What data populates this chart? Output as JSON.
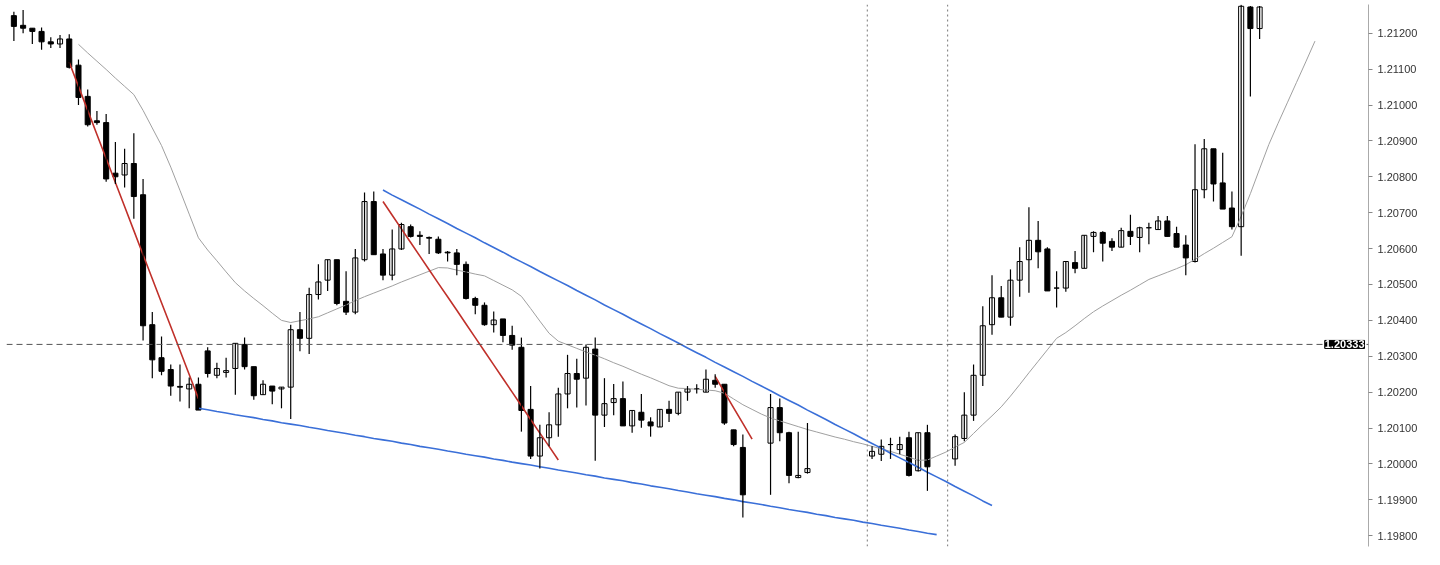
{
  "chart_data": {
    "type": "candlestick",
    "categories": [
      null,
      null,
      null,
      null,
      null,
      null,
      null,
      null,
      null,
      null,
      null,
      null,
      null,
      null,
      null,
      null,
      null,
      null,
      null,
      null,
      null,
      null,
      null,
      null,
      null,
      null,
      null,
      null,
      null,
      null,
      null,
      null,
      null,
      null,
      null,
      null,
      null,
      null,
      null,
      null,
      null,
      null,
      null,
      null,
      null,
      null,
      null,
      null,
      null,
      null,
      null,
      null,
      null,
      null,
      null,
      null,
      null,
      null,
      null,
      null,
      null,
      null,
      null,
      null,
      null,
      null,
      null,
      null,
      null,
      null,
      null,
      null,
      null,
      null,
      null,
      null,
      null,
      null,
      null,
      null,
      null,
      null,
      null,
      null,
      null,
      null,
      null,
      null,
      null,
      null,
      null,
      null,
      null,
      null,
      null,
      null,
      null,
      null,
      null,
      null,
      null,
      null,
      null,
      null,
      null,
      null,
      null,
      null,
      null,
      null,
      null,
      null,
      null,
      null,
      null,
      null,
      null,
      null,
      null,
      null,
      null,
      null,
      null,
      null,
      null,
      null,
      null,
      null,
      null,
      null,
      null,
      null,
      null,
      null,
      null,
      null,
      null,
      null,
      null,
      null,
      null,
      null,
      null,
      null,
      null,
      null,
      null
    ],
    "ohlc": [
      [
        1.21249,
        1.2126,
        1.21178,
        1.21219
      ],
      [
        1.21222,
        1.21265,
        1.212,
        1.21214
      ],
      [
        1.21214,
        1.21214,
        1.2117,
        1.21205
      ],
      [
        1.21205,
        1.21216,
        1.21154,
        1.21176
      ],
      [
        1.21176,
        1.21189,
        1.21159,
        1.2117
      ],
      [
        1.2117,
        1.21195,
        1.21159,
        1.21184
      ],
      [
        1.21184,
        1.21197,
        1.21102,
        1.21105
      ],
      [
        1.21111,
        1.21127,
        1.21,
        1.21021
      ],
      [
        1.21024,
        1.21043,
        1.2094,
        1.20945
      ],
      [
        1.20956,
        1.20983,
        1.20945,
        1.20951
      ],
      [
        1.20951,
        1.20975,
        1.20786,
        1.20794
      ],
      [
        1.2081,
        1.20897,
        1.2078,
        1.208
      ],
      [
        1.20805,
        1.20878,
        1.2077,
        1.20837
      ],
      [
        1.20837,
        1.20921,
        1.20683,
        1.20745
      ],
      [
        1.2075,
        1.20794,
        1.20344,
        1.20385
      ],
      [
        1.20388,
        1.20423,
        1.20239,
        1.2029
      ],
      [
        1.20296,
        1.20355,
        1.20247,
        1.20258
      ],
      [
        1.20263,
        1.20277,
        1.2019,
        1.20217
      ],
      [
        1.20216,
        1.20277,
        1.20174,
        1.20214
      ],
      [
        1.20209,
        1.20241,
        1.20155,
        1.20222
      ],
      [
        1.20222,
        1.20241,
        1.2015,
        1.2015
      ],
      [
        1.20315,
        1.20325,
        1.20241,
        1.20252
      ],
      [
        1.20247,
        1.20282,
        1.20239,
        1.20266
      ],
      [
        1.20255,
        1.20296,
        1.20241,
        1.2026
      ],
      [
        1.20266,
        1.20336,
        1.20193,
        1.20336
      ],
      [
        1.20333,
        1.20352,
        1.20263,
        1.20271
      ],
      [
        1.20271,
        1.20271,
        1.20179,
        1.2019
      ],
      [
        1.20193,
        1.20233,
        1.20193,
        1.20222
      ],
      [
        1.20217,
        1.20217,
        1.20166,
        1.20203
      ],
      [
        1.20209,
        1.20214,
        1.20155,
        1.20214
      ],
      [
        1.20214,
        1.20388,
        1.20125,
        1.20374
      ],
      [
        1.20374,
        1.20423,
        1.20314,
        1.2035
      ],
      [
        1.2035,
        1.20491,
        1.20306,
        1.20472
      ],
      [
        1.20472,
        1.20556,
        1.20458,
        1.20507
      ],
      [
        1.20512,
        1.20569,
        1.20482,
        1.20569
      ],
      [
        1.20569,
        1.20569,
        1.20442,
        1.20447
      ],
      [
        1.20453,
        1.20537,
        1.20415,
        1.20423
      ],
      [
        1.20423,
        1.20599,
        1.20417,
        1.20574
      ],
      [
        1.20569,
        1.20756,
        1.20564,
        1.20731
      ],
      [
        1.20731,
        1.20759,
        1.20583,
        1.20583
      ],
      [
        1.20585,
        1.20599,
        1.20512,
        1.20526
      ],
      [
        1.20526,
        1.20653,
        1.20512,
        1.20599
      ],
      [
        1.20599,
        1.20672,
        1.20596,
        1.20667
      ],
      [
        1.20661,
        1.20667,
        1.20631,
        1.20634
      ],
      [
        1.20637,
        1.20648,
        1.2061,
        1.20634
      ],
      [
        1.20631,
        1.20634,
        1.20585,
        1.20629
      ],
      [
        1.20626,
        1.20634,
        1.20585,
        1.20588
      ],
      [
        1.2059,
        1.20593,
        1.20564,
        1.20588
      ],
      [
        1.20588,
        1.20599,
        1.20526,
        1.20556
      ],
      [
        1.20556,
        1.20564,
        1.20458,
        1.20461
      ],
      [
        1.20461,
        1.20466,
        1.20417,
        1.20442
      ],
      [
        1.20442,
        1.2045,
        1.20385,
        1.20388
      ],
      [
        1.20388,
        1.20425,
        1.20366,
        1.20401
      ],
      [
        1.20404,
        1.20404,
        1.20339,
        1.20358
      ],
      [
        1.20358,
        1.20385,
        1.20318,
        1.20331
      ],
      [
        1.20325,
        1.20352,
        1.2009,
        1.20149
      ],
      [
        1.20152,
        1.20217,
        1.20014,
        1.20022
      ],
      [
        1.20022,
        1.20109,
        1.19987,
        1.20073
      ],
      [
        1.20073,
        1.20144,
        1.20049,
        1.20109
      ],
      [
        1.20109,
        1.20212,
        1.20076,
        1.20195
      ],
      [
        1.20195,
        1.20304,
        1.20155,
        1.20252
      ],
      [
        1.20252,
        1.20293,
        1.20157,
        1.20236
      ],
      [
        1.20239,
        1.20333,
        1.20163,
        1.20325
      ],
      [
        1.2032,
        1.20352,
        1.20009,
        1.20136
      ],
      [
        1.20136,
        1.20239,
        1.20103,
        1.20168
      ],
      [
        1.20171,
        1.20223,
        1.20136,
        1.20182
      ],
      [
        1.20182,
        1.2023,
        1.20106,
        1.20106
      ],
      [
        1.20106,
        1.20149,
        1.20087,
        1.20149
      ],
      [
        1.20144,
        1.20195,
        1.20101,
        1.20122
      ],
      [
        1.20117,
        1.2013,
        1.20076,
        1.20106
      ],
      [
        1.20103,
        1.20152,
        1.20103,
        1.20152
      ],
      [
        1.20152,
        1.20176,
        1.20117,
        1.20141
      ],
      [
        1.20141,
        1.202,
        1.20136,
        1.202
      ],
      [
        1.202,
        1.20217,
        1.20176,
        1.20209
      ],
      [
        1.20209,
        1.20222,
        1.20196,
        1.20209
      ],
      [
        1.202,
        1.20263,
        1.202,
        1.20236
      ],
      [
        1.20233,
        1.2025,
        1.20212,
        1.20222
      ],
      [
        1.20222,
        1.20222,
        1.20109,
        1.20114
      ],
      [
        1.20095,
        1.20095,
        1.20049,
        1.20054
      ],
      [
        1.20046,
        1.20082,
        1.19851,
        1.19914
      ],
      null,
      null,
      [
        1.20058,
        1.20195,
        1.19914,
        1.20157
      ],
      [
        1.20157,
        1.20182,
        1.20063,
        1.20087
      ],
      [
        1.20087,
        1.2009,
        1.19946,
        1.19968
      ],
      [
        1.19962,
        1.2009,
        1.1996,
        1.19968
      ],
      [
        1.19976,
        1.20114,
        1.19973,
        1.19987
      ],
      null,
      null,
      null,
      null,
      null,
      null,
      [
        1.20022,
        1.20049,
        1.20014,
        1.20035
      ],
      [
        1.20027,
        1.20068,
        1.20008,
        1.20049
      ],
      [
        1.20054,
        1.20073,
        1.20014,
        1.20054
      ],
      [
        1.2004,
        1.20076,
        1.20027,
        1.20054
      ],
      [
        1.20073,
        1.2009,
        1.19965,
        1.19968
      ],
      [
        1.19981,
        1.20087,
        1.19979,
        1.20087
      ],
      [
        1.20087,
        1.20109,
        1.19925,
        1.19992
      ],
      null,
      null,
      [
        1.20014,
        1.20082,
        1.19995,
        1.20076
      ],
      [
        1.20071,
        1.202,
        1.20063,
        1.20136
      ],
      [
        1.20136,
        1.20277,
        1.2012,
        1.20247
      ],
      [
        1.20247,
        1.20439,
        1.20217,
        1.20385
      ],
      [
        1.20388,
        1.20526,
        1.2036,
        1.20463
      ],
      [
        1.20463,
        1.20496,
        1.20409,
        1.20409
      ],
      [
        1.20409,
        1.20542,
        1.20385,
        1.20512
      ],
      [
        1.20512,
        1.20604,
        1.20466,
        1.20564
      ],
      [
        1.20569,
        1.20715,
        1.20477,
        1.20623
      ],
      [
        1.20623,
        1.20677,
        1.20545,
        1.20591
      ],
      [
        1.20599,
        1.20604,
        1.20482,
        1.20482
      ],
      [
        1.2049,
        1.20537,
        1.20436,
        1.2049
      ],
      [
        1.2049,
        1.20564,
        1.2048,
        1.20564
      ],
      [
        1.20561,
        1.20593,
        1.20531,
        1.20545
      ],
      [
        1.20545,
        1.20637,
        1.20545,
        1.20637
      ],
      [
        1.20634,
        1.20648,
        1.2059,
        1.20645
      ],
      [
        1.20645,
        1.20648,
        1.20564,
        1.20615
      ],
      [
        1.2062,
        1.20629,
        1.20593,
        1.20604
      ],
      [
        1.20604,
        1.20658,
        1.20604,
        1.2065
      ],
      [
        1.20648,
        1.20694,
        1.2061,
        1.20634
      ],
      [
        1.20631,
        1.20661,
        1.2059,
        1.20658
      ],
      [
        1.20658,
        1.20672,
        1.20612,
        1.20658
      ],
      [
        1.20653,
        1.20691,
        1.20653,
        1.20677
      ],
      [
        1.20677,
        1.20691,
        1.20634,
        1.20634
      ],
      [
        1.20642,
        1.20661,
        1.20604,
        1.20604
      ],
      [
        1.2061,
        1.20637,
        1.20526,
        1.20574
      ],
      [
        1.20564,
        1.20891,
        1.20561,
        1.20764
      ],
      [
        1.20764,
        1.20905,
        1.2074,
        1.20878
      ],
      [
        1.20878,
        1.20878,
        1.20731,
        1.2078
      ],
      [
        1.20783,
        1.20867,
        1.2071,
        1.2071
      ],
      [
        1.20713,
        1.20759,
        1.20653,
        1.20661
      ],
      [
        1.20661,
        1.21279,
        1.2058,
        1.21275
      ],
      [
        1.21273,
        1.21276,
        1.21024,
        1.21213
      ],
      [
        1.21213,
        1.21276,
        1.21184,
        1.21273
      ],
      null,
      null,
      null,
      null,
      null,
      null,
      null,
      null,
      null,
      null,
      null
    ],
    "series": [
      {
        "type": "line",
        "color": "#a0a0a0",
        "values": [
          null,
          null,
          null,
          null,
          null,
          null,
          null,
          1.21169,
          1.21145,
          1.21122,
          1.21099,
          1.21075,
          1.21052,
          1.21029,
          1.20985,
          1.20936,
          1.20887,
          1.20827,
          1.20762,
          1.20696,
          1.2063,
          1.20596,
          1.20566,
          1.20535,
          1.20505,
          1.20482,
          1.20461,
          1.20441,
          1.2042,
          1.204,
          1.20394,
          1.20399,
          1.20404,
          1.2041,
          1.20421,
          1.20432,
          1.20443,
          1.20455,
          1.20466,
          1.20476,
          1.20486,
          1.20496,
          1.20507,
          1.20517,
          1.20527,
          1.20537,
          1.20547,
          1.20546,
          1.2054,
          1.20535,
          1.20529,
          1.20524,
          1.20511,
          1.20498,
          1.20485,
          1.20467,
          1.20433,
          1.20398,
          1.20364,
          1.20342,
          1.20332,
          1.20322,
          1.20312,
          1.20303,
          1.20293,
          1.20282,
          1.20272,
          1.20261,
          1.2025,
          1.2024,
          1.20229,
          1.20218,
          1.20211,
          1.2021,
          1.20208,
          1.20206,
          1.20204,
          1.20197,
          1.20181,
          1.20165,
          1.20152,
          1.20139,
          1.20128,
          1.2012,
          1.20112,
          1.20104,
          1.20096,
          1.20089,
          1.20082,
          1.20075,
          1.20069,
          1.20062,
          1.20056,
          1.20049,
          1.20042,
          1.20035,
          1.20027,
          1.20019,
          1.2001,
          1.20011,
          1.20022,
          1.20033,
          1.20047,
          1.2006,
          1.20085,
          1.2011,
          1.20134,
          1.20159,
          1.20189,
          1.20221,
          1.20254,
          1.20286,
          1.20318,
          1.2035,
          1.20366,
          1.20385,
          1.20405,
          1.20424,
          1.2044,
          1.20455,
          1.2047,
          1.20484,
          1.20499,
          1.20514,
          1.20524,
          1.20534,
          1.20544,
          1.20555,
          1.2057,
          1.20586,
          1.20601,
          1.20617,
          1.20633,
          1.2069,
          1.20753,
          1.20822,
          1.2089,
          1.20949,
          1.21006,
          1.21063,
          1.2112,
          1.21178,
          null,
          null,
          null,
          null,
          null
        ]
      },
      {
        "type": "line",
        "color": "#3a6fd8",
        "values": [
          null,
          null,
          null,
          null,
          null,
          null,
          null,
          null,
          null,
          null,
          null,
          null,
          null,
          null,
          null,
          null,
          null,
          null,
          null,
          null,
          null,
          null,
          null,
          null,
          null,
          null,
          null,
          null,
          null,
          null,
          null,
          null,
          null,
          null,
          null,
          null,
          null,
          null,
          null,
          null,
          1.20763,
          1.20749,
          1.20736,
          1.20723,
          1.2071,
          1.20696,
          1.20683,
          1.2067,
          1.20656,
          1.20643,
          1.2063,
          1.20616,
          1.20603,
          1.2059,
          1.20576,
          1.20563,
          1.2055,
          1.20536,
          1.20523,
          1.2051,
          1.20497,
          1.20483,
          1.2047,
          1.20457,
          1.20443,
          1.2043,
          1.20417,
          1.20403,
          1.2039,
          1.20377,
          1.20363,
          1.2035,
          1.20337,
          1.20323,
          1.2031,
          1.20297,
          1.20283,
          1.2027,
          1.20257,
          1.20244,
          1.2023,
          1.20217,
          1.20204,
          1.2019,
          1.20177,
          1.20164,
          1.2015,
          1.20137,
          1.20124,
          1.2011,
          1.20097,
          1.20084,
          1.2007,
          1.20057,
          1.20044,
          1.2003,
          1.20017,
          1.20004,
          1.19991,
          1.19977,
          1.19964,
          1.19951,
          1.19937,
          1.19924,
          1.19911,
          1.19897,
          1.19884,
          null,
          null,
          null,
          null,
          null,
          null,
          null,
          null,
          null,
          null,
          null,
          null,
          null,
          null,
          null,
          null,
          null,
          null,
          null,
          null,
          null,
          null,
          null,
          null,
          null,
          null,
          null,
          null,
          null,
          null,
          null,
          null,
          null,
          null,
          null,
          null,
          null,
          null,
          null,
          null
        ]
      },
      {
        "type": "line",
        "color": "#3a6fd8",
        "values": [
          null,
          null,
          null,
          null,
          null,
          null,
          null,
          null,
          null,
          null,
          null,
          null,
          null,
          null,
          null,
          null,
          null,
          null,
          null,
          null,
          1.20155,
          1.20151,
          1.20146,
          1.20142,
          1.20137,
          1.20133,
          1.20129,
          1.20124,
          1.2012,
          1.20115,
          1.20111,
          1.20107,
          1.20102,
          1.20098,
          1.20093,
          1.20089,
          1.20085,
          1.2008,
          1.20076,
          1.20071,
          1.20067,
          1.20063,
          1.20058,
          1.20054,
          1.20049,
          1.20045,
          1.20041,
          1.20036,
          1.20032,
          1.20027,
          1.20023,
          1.20019,
          1.20014,
          1.2001,
          1.20005,
          1.20001,
          1.19997,
          1.19992,
          1.19988,
          1.19983,
          1.19979,
          1.19975,
          1.1997,
          1.19966,
          1.19961,
          1.19957,
          1.19953,
          1.19948,
          1.19944,
          1.19939,
          1.19935,
          1.19931,
          1.19926,
          1.19922,
          1.19917,
          1.19913,
          1.19909,
          1.19904,
          1.199,
          1.19895,
          1.19891,
          1.19887,
          1.19882,
          1.19878,
          1.19873,
          1.19869,
          1.19865,
          1.1986,
          1.19856,
          1.19851,
          1.19847,
          1.19843,
          1.19838,
          1.19834,
          1.19829,
          1.19825,
          1.19821,
          1.19816,
          1.19812,
          1.19807,
          1.19803,
          null,
          null,
          null,
          null,
          null,
          null,
          null,
          null,
          null,
          null,
          null,
          null,
          null,
          null,
          null,
          null,
          null,
          null,
          null,
          null,
          null,
          null,
          null,
          null,
          null,
          null,
          null,
          null,
          null,
          null,
          null,
          null,
          null,
          null,
          null,
          null,
          null,
          null,
          null,
          null,
          null,
          null,
          null,
          null,
          null,
          null
        ]
      },
      {
        "type": "line",
        "color": "#c0302a",
        "values": [
          null,
          null,
          null,
          null,
          null,
          null,
          1.21119,
          1.21052,
          1.20985,
          1.20918,
          1.20851,
          1.20784,
          1.20717,
          1.2065,
          1.20583,
          1.20516,
          1.20449,
          1.20383,
          1.20316,
          1.20249,
          1.20182,
          null,
          null,
          null,
          null,
          null,
          null,
          null,
          null,
          null,
          null,
          null,
          null,
          null,
          null,
          null,
          null,
          null,
          null,
          null,
          null,
          null,
          null,
          null,
          null,
          null,
          null,
          null,
          null,
          null,
          null,
          null,
          null,
          null,
          null,
          null,
          null,
          null,
          null,
          null,
          null,
          null,
          null,
          null,
          null,
          null,
          null,
          null,
          null,
          null,
          null,
          null,
          null,
          null,
          null,
          null,
          null,
          null,
          null,
          null,
          null,
          null,
          null,
          null,
          null,
          null,
          null,
          null,
          null,
          null,
          null,
          null,
          null,
          null,
          null,
          null,
          null,
          null,
          null,
          null,
          null,
          null,
          null,
          null,
          null,
          null,
          null,
          null,
          null,
          null,
          null,
          null,
          null,
          null,
          null,
          null,
          null,
          null,
          null,
          null,
          null,
          null,
          null,
          null,
          null,
          null,
          null,
          null,
          null,
          null,
          null,
          null,
          null,
          null,
          null,
          null,
          null,
          null,
          null,
          null,
          null,
          null,
          null,
          null,
          null,
          null,
          null
        ]
      },
      {
        "type": "line",
        "color": "#c0302a",
        "values": [
          null,
          null,
          null,
          null,
          null,
          null,
          null,
          null,
          null,
          null,
          null,
          null,
          null,
          null,
          null,
          null,
          null,
          null,
          null,
          null,
          null,
          null,
          null,
          null,
          null,
          null,
          null,
          null,
          null,
          null,
          null,
          null,
          null,
          null,
          null,
          null,
          null,
          null,
          null,
          null,
          1.20731,
          1.20693,
          1.20655,
          1.20617,
          1.20579,
          1.20541,
          1.20503,
          1.20466,
          1.20428,
          1.2039,
          1.20352,
          1.20314,
          1.20276,
          1.20238,
          1.202,
          1.20162,
          1.20124,
          1.20086,
          1.20049,
          1.20011,
          null,
          null,
          null,
          null,
          null,
          null,
          null,
          null,
          null,
          null,
          null,
          null,
          null,
          null,
          null,
          null,
          null,
          null,
          null,
          null,
          null,
          null,
          null,
          null,
          null,
          null,
          null,
          null,
          null,
          null,
          null,
          null,
          null,
          null,
          null,
          null,
          null,
          null,
          null,
          null,
          null,
          null,
          null,
          null,
          null,
          null,
          null,
          null,
          null,
          null,
          null,
          null,
          null,
          null,
          null,
          null,
          null,
          null,
          null,
          null,
          null,
          null,
          null,
          null,
          null,
          null,
          null,
          null,
          null,
          null,
          null,
          null,
          null,
          null,
          null,
          null,
          null,
          null,
          null,
          null,
          null,
          null,
          null,
          null,
          null,
          null,
          null
        ]
      },
      {
        "type": "line",
        "color": "#c0302a",
        "values": [
          null,
          null,
          null,
          null,
          null,
          null,
          null,
          null,
          null,
          null,
          null,
          null,
          null,
          null,
          null,
          null,
          null,
          null,
          null,
          null,
          null,
          null,
          null,
          null,
          null,
          null,
          null,
          null,
          null,
          null,
          null,
          null,
          null,
          null,
          null,
          null,
          null,
          null,
          null,
          null,
          null,
          null,
          null,
          null,
          null,
          null,
          null,
          null,
          null,
          null,
          null,
          null,
          null,
          null,
          null,
          null,
          null,
          null,
          null,
          null,
          null,
          null,
          null,
          null,
          null,
          null,
          null,
          null,
          null,
          null,
          null,
          null,
          null,
          null,
          null,
          null,
          1.20244,
          1.202,
          1.20156,
          1.20113,
          1.20069,
          null,
          null,
          null,
          null,
          null,
          null,
          null,
          null,
          null,
          null,
          null,
          null,
          null,
          null,
          null,
          null,
          null,
          null,
          null,
          null,
          null,
          null,
          null,
          null,
          null,
          null,
          null,
          null,
          null,
          null,
          null,
          null,
          null,
          null,
          null,
          null,
          null,
          null,
          null,
          null,
          null,
          null,
          null,
          null,
          null,
          null,
          null,
          null,
          null,
          null,
          null,
          null,
          null,
          null,
          null,
          null,
          null,
          null,
          null,
          null,
          null,
          null,
          null,
          null,
          null,
          null
        ]
      }
    ],
    "ylim": [
      1.1977,
      1.2128
    ],
    "yticks": [
      {
        "value": 1.198,
        "label": "1.19800"
      },
      {
        "value": 1.199,
        "label": "1.19900"
      },
      {
        "value": 1.2,
        "label": "1.20000"
      },
      {
        "value": 1.201,
        "label": "1.20100"
      },
      {
        "value": 1.202,
        "label": "1.20200"
      },
      {
        "value": 1.203,
        "label": "1.20300"
      },
      {
        "value": 1.204,
        "label": "1.20400"
      },
      {
        "value": 1.205,
        "label": "1.20500"
      },
      {
        "value": 1.206,
        "label": "1.20600"
      },
      {
        "value": 1.207,
        "label": "1.20700"
      },
      {
        "value": 1.208,
        "label": "1.20800"
      },
      {
        "value": 1.209,
        "label": "1.20900"
      },
      {
        "value": 1.21,
        "label": "1.21000"
      },
      {
        "value": 1.211,
        "label": "1.21100"
      },
      {
        "value": 1.212,
        "label": "1.21200"
      }
    ],
    "ref_lines": [
      {
        "axis": "y",
        "value": 1.20333,
        "label": "1.20333",
        "color": "#555555",
        "line_style": "dashed"
      }
    ],
    "tick_labels": "y",
    "grid": false
  }
}
